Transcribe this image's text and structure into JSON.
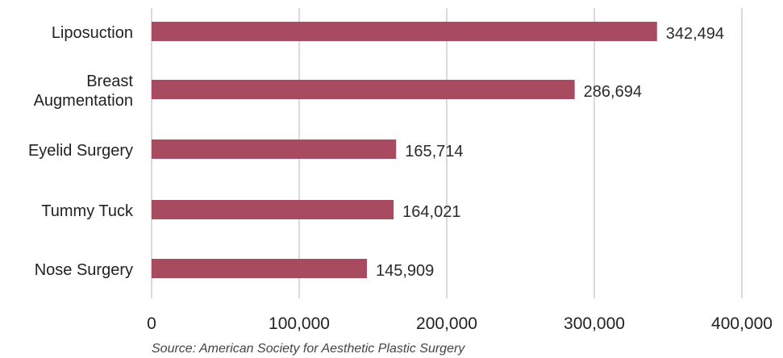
{
  "chart_data": {
    "type": "bar",
    "orientation": "horizontal",
    "categories": [
      "Liposuction",
      "Breast\nAugmentation",
      "Eyelid Surgery",
      "Tummy Tuck",
      "Nose Surgery"
    ],
    "values": [
      342494,
      286694,
      165714,
      164021,
      145909
    ],
    "value_labels": [
      "342,494",
      "286,694",
      "165,714",
      "164,021",
      "145,909"
    ],
    "x_ticks": [
      0,
      100000,
      200000,
      300000,
      400000
    ],
    "x_tick_labels": [
      "0",
      "100,000",
      "200,000",
      "300,000",
      "400,000"
    ],
    "xlim": [
      0,
      400000
    ],
    "grid": "vertical",
    "bar_color": "#a84b61",
    "grid_color": "#b5b5b5"
  },
  "footer": {
    "source": "Source: American Society for Aesthetic Plastic Surgery"
  }
}
